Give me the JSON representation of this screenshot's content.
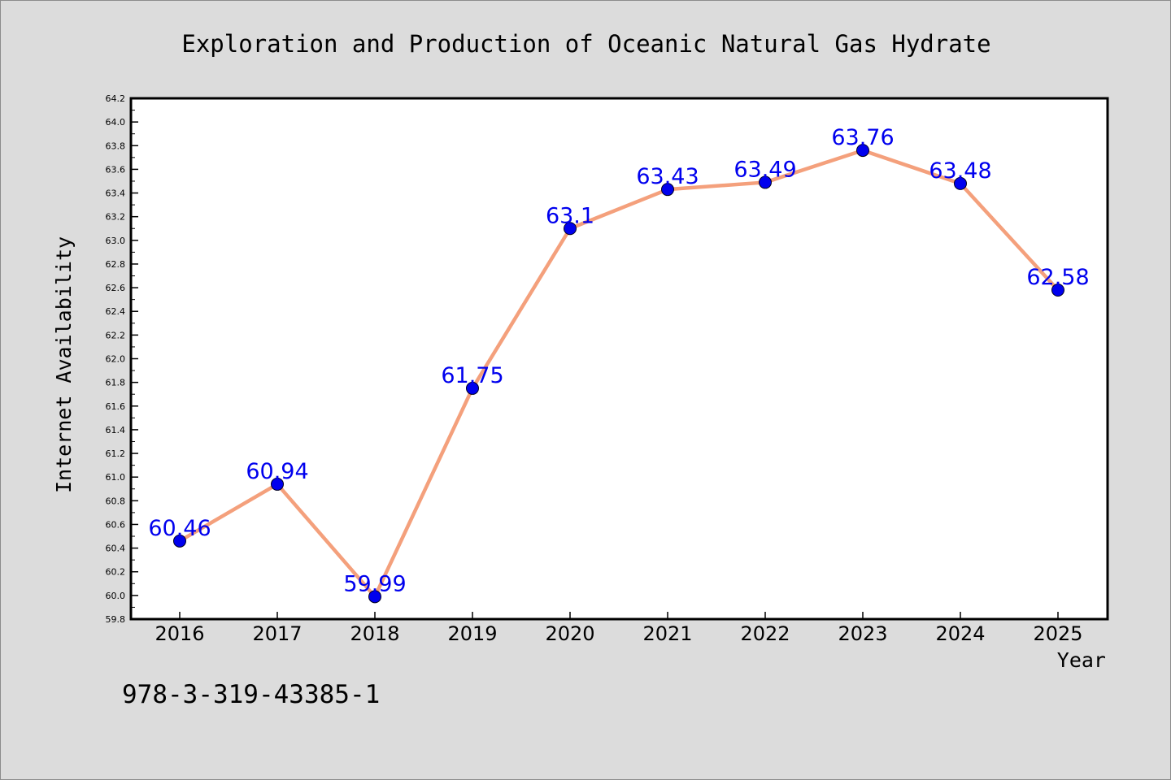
{
  "chart_data": {
    "type": "line",
    "title": "Exploration and Production of Oceanic Natural Gas Hydrate",
    "xlabel": "Year",
    "ylabel": "Internet Availability",
    "categories": [
      "2016",
      "2017",
      "2018",
      "2019",
      "2020",
      "2021",
      "2022",
      "2023",
      "2024",
      "2025"
    ],
    "values": [
      60.46,
      60.94,
      59.99,
      61.75,
      63.1,
      63.43,
      63.49,
      63.76,
      63.48,
      62.58
    ],
    "data_labels": [
      "60.46",
      "60.94",
      "59.99",
      "61.75",
      "63.1",
      "63.43",
      "63.49",
      "63.76",
      "63.48",
      "62.58"
    ],
    "ylim": [
      59.8,
      64.2
    ],
    "yticks": [
      "59.8",
      "60.0",
      "60.2",
      "60.4",
      "60.6",
      "60.8",
      "61.0",
      "61.2",
      "61.4",
      "61.6",
      "61.8",
      "62.0",
      "62.2",
      "62.4",
      "62.6",
      "62.8",
      "63.0",
      "63.2",
      "63.4",
      "63.6",
      "63.8",
      "64.0",
      "64.2"
    ],
    "grid": false,
    "legend": "none",
    "line_color": "#f4a07c",
    "marker_color": "#0000ee",
    "label_color": "#0000ee",
    "background_color": "#dcdcdc",
    "plot_background": "#ffffff"
  },
  "footer": {
    "isbn": "978-3-319-43385-1"
  }
}
